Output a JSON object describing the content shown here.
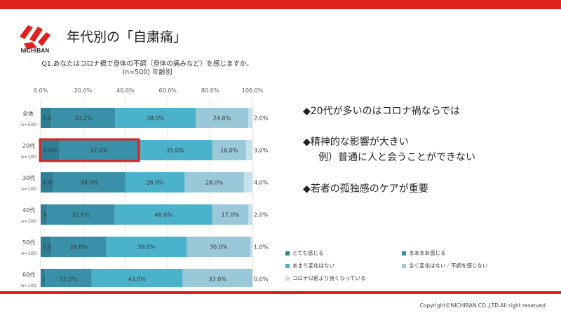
{
  "header": {
    "title": "年代別の「自粛痛」",
    "logo_text": "NICHIBAN"
  },
  "question": {
    "line1": "Q1.あなたはコロナ禍で身体の不調（身体の痛みなど）を感じますか。",
    "line2": "(n=500) 年齢別"
  },
  "chart_data": {
    "type": "bar",
    "orientation": "horizontal",
    "stacked": true,
    "percent": true,
    "xlim": [
      0,
      100
    ],
    "x_ticks": [
      "0.0%",
      "20.0%",
      "40.0%",
      "60.0%",
      "80.0%",
      "100.0%"
    ],
    "grid": true,
    "legend_position": "bottom-right",
    "categories": [
      "全体",
      "20代",
      "30代",
      "40代",
      "50代",
      "60代"
    ],
    "category_n": [
      "n=500",
      "n=100",
      "n=100",
      "n=100",
      "n=100",
      "n=100"
    ],
    "series": [
      {
        "name": "とても感じる",
        "color": "#2e7f96",
        "values": [
          5.0,
          9.0,
          6.0,
          3.0,
          5.0,
          2.0
        ]
      },
      {
        "name": "まあまあ感じる",
        "color": "#3b90a9",
        "values": [
          30.2,
          37.0,
          34.0,
          32.0,
          26.0,
          22.0
        ]
      },
      {
        "name": "あまり変化はない",
        "color": "#4bb2cb",
        "values": [
          38.0,
          35.0,
          28.0,
          46.0,
          38.0,
          43.0
        ]
      },
      {
        "name": "全く変化はない／不調を感じない",
        "color": "#99c8d8",
        "values": [
          24.8,
          16.0,
          28.0,
          17.0,
          30.0,
          33.0
        ]
      },
      {
        "name": "コロナ以前より良くなっている",
        "color": "#c5e1eb",
        "values": [
          2.0,
          3.0,
          4.0,
          2.0,
          1.0,
          0.0
        ]
      }
    ],
    "highlight": {
      "category_index": 1,
      "series_from": 0,
      "series_to": 1,
      "color": "#e0201c"
    }
  },
  "bullets": {
    "item1": "◆20代が多いのはコロナ禍ならでは",
    "item2": "◆精神的な影響が大きい",
    "item2_sub": "例）普通に人と会うことができない",
    "item3": "◆若者の孤独感のケアが重要"
  },
  "footer": {
    "copyright": "Copyright©NICHIBAN CO.,LTD.All right reserved"
  }
}
